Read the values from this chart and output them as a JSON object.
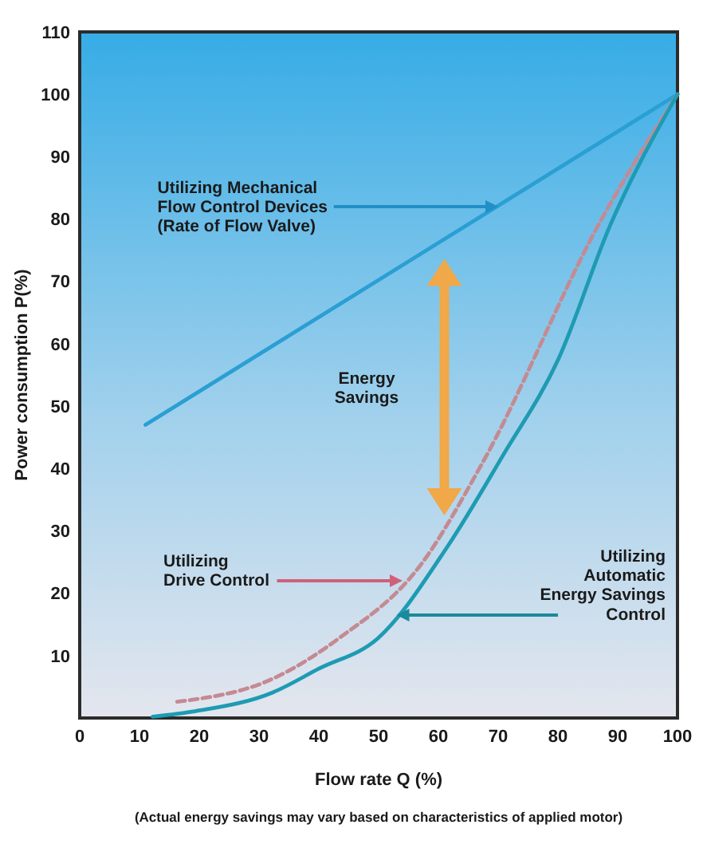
{
  "chart_data": {
    "type": "line",
    "xlabel": "Flow rate Q (%)",
    "ylabel": "Power consumption P(%)",
    "xlim": [
      0,
      100
    ],
    "ylim": [
      0,
      110
    ],
    "xticks": [
      0,
      10,
      20,
      30,
      40,
      50,
      60,
      70,
      80,
      90,
      100
    ],
    "yticks": [
      10,
      20,
      30,
      40,
      50,
      60,
      70,
      80,
      90,
      100,
      110
    ],
    "series": [
      {
        "color": "#2a9fd3",
        "x": [
          11,
          100
        ],
        "values": [
          47,
          100
        ]
      },
      {
        "color": "#c48a92",
        "line_style": "dashed",
        "x": [
          16.3,
          32.3,
          43.4,
          57,
          67.2,
          87.2,
          100
        ],
        "values": [
          2.6,
          6.3,
          12.8,
          24.5,
          40.6,
          79.8,
          100
        ]
      },
      {
        "color": "#1e9bb3",
        "x": [
          12.2,
          19.4,
          32.3,
          40,
          49.9,
          61.6,
          70.8,
          80.1,
          88.7,
          100
        ],
        "values": [
          0.2,
          1.1,
          4.1,
          7.9,
          12.8,
          27.6,
          42.1,
          57.6,
          78.9,
          100
        ]
      }
    ],
    "annotations": [
      {
        "text": "Utilizing Mechanical\nFlow Control Devices\n(Rate of Flow Valve)",
        "x": 70,
        "y": 82
      },
      "Energy\nSavings",
      {
        "text": "Utilizing\nDrive Control",
        "x": 54,
        "y": 22
      },
      {
        "text": "Utilizing\nAutomatic\nEnergy Savings\nControl",
        "x": 53,
        "y": 16.5
      },
      "(Actual energy savings may vary based on characteristics of applied motor)"
    ]
  }
}
